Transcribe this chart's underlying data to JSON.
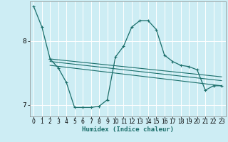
{
  "xlabel": "Humidex (Indice chaleur)",
  "bg_color": "#cdedf4",
  "grid_color": "#ffffff",
  "line_color": "#1a6e6a",
  "xlim": [
    -0.5,
    23.5
  ],
  "ylim": [
    6.82,
    8.62
  ],
  "yticks": [
    7,
    8
  ],
  "xticks": [
    0,
    1,
    2,
    3,
    4,
    5,
    6,
    7,
    8,
    9,
    10,
    11,
    12,
    13,
    14,
    15,
    16,
    17,
    18,
    19,
    20,
    21,
    22,
    23
  ],
  "series": [
    {
      "x": [
        0,
        1,
        2
      ],
      "y": [
        8.54,
        8.22,
        7.72
      ],
      "marker": true
    },
    {
      "x": [
        2,
        3,
        4,
        5,
        6,
        7,
        8,
        9,
        10,
        11,
        12,
        13,
        14,
        15,
        16,
        17,
        18,
        19,
        20,
        21,
        22,
        23
      ],
      "y": [
        7.72,
        7.58,
        7.35,
        6.96,
        6.96,
        6.96,
        6.98,
        7.08,
        7.75,
        7.92,
        8.22,
        8.32,
        8.32,
        8.18,
        7.78,
        7.68,
        7.62,
        7.6,
        7.55,
        7.23,
        7.3,
        7.3
      ],
      "marker": true
    },
    {
      "x": [
        2,
        23
      ],
      "y": [
        7.72,
        7.44
      ],
      "marker": false
    },
    {
      "x": [
        2,
        23
      ],
      "y": [
        7.68,
        7.38
      ],
      "marker": false
    },
    {
      "x": [
        2,
        23
      ],
      "y": [
        7.62,
        7.3
      ],
      "marker": false
    }
  ]
}
